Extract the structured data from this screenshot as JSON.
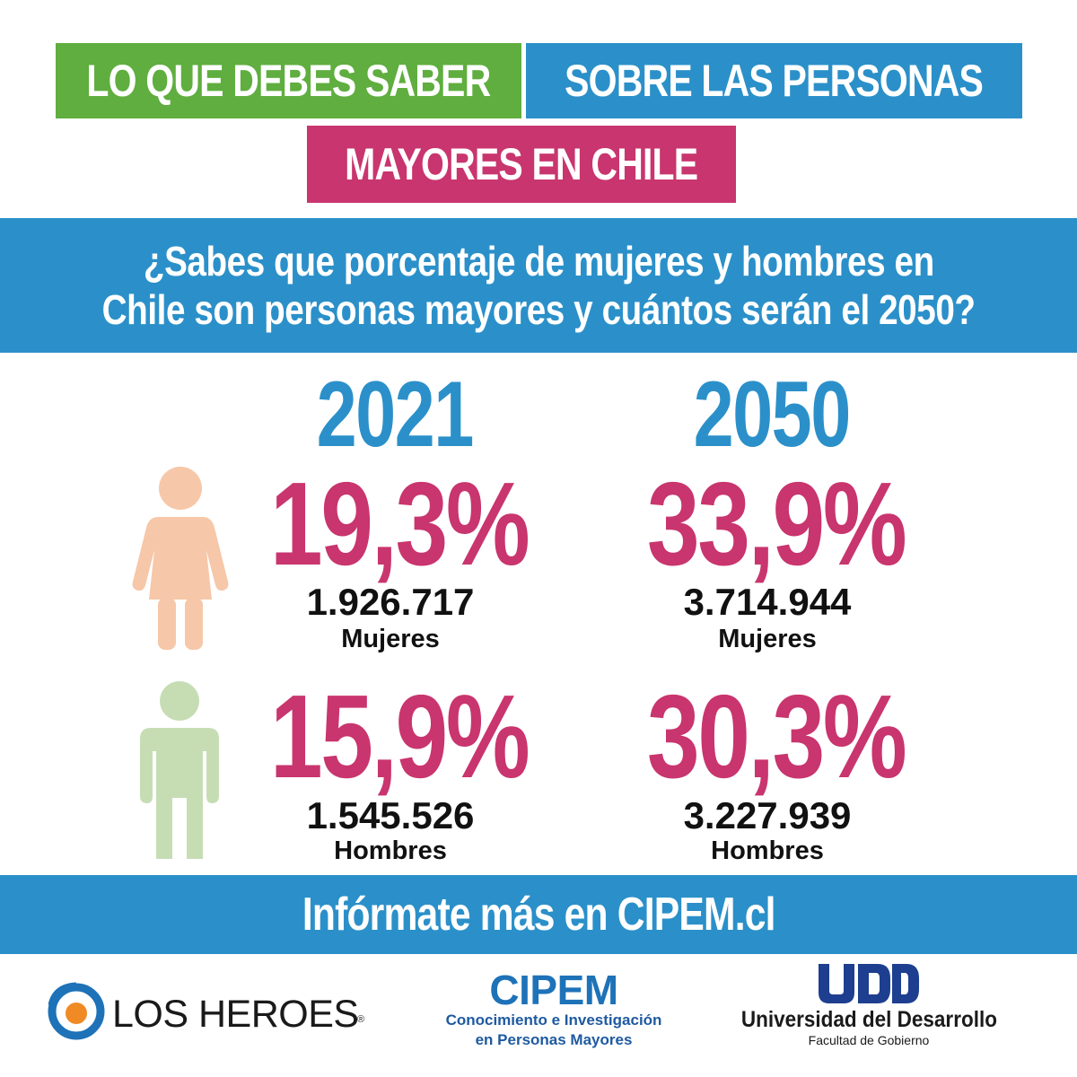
{
  "header": {
    "part1": "LO QUE DEBES SABER",
    "part2": "SOBRE LAS PERSONAS",
    "part3": "MAYORES EN CHILE"
  },
  "question": {
    "line1": "¿Sabes que porcentaje de mujeres y hombres en",
    "line2": "Chile son personas mayores y cuántos serán el 2050?"
  },
  "years": [
    "2021",
    "2050"
  ],
  "women": {
    "label": "Mujeres",
    "y2021": {
      "percent": "19,3%",
      "count": "1.926.717"
    },
    "y2050": {
      "percent": "33,9%",
      "count": "3.714.944"
    }
  },
  "men": {
    "label": "Hombres",
    "y2021": {
      "percent": "15,9%",
      "count": "1.545.526"
    },
    "y2050": {
      "percent": "30,3%",
      "count": "3.227.939"
    }
  },
  "footer": {
    "text": "Infórmate más en CIPEM.cl"
  },
  "logos": {
    "losheroes": {
      "name": "LOS HEROES",
      "mark": "®"
    },
    "cipem": {
      "name": "CIPEM",
      "line1": "Conocimiento e Investigación",
      "line2": "en Personas Mayores"
    },
    "udd": {
      "name": "Universidad del Desarrollo",
      "sub": "Facultad de Gobierno"
    }
  },
  "colors": {
    "green": "#5fae3f",
    "blue": "#2b90c9",
    "pink": "#c9356e",
    "woman_icon": "#f6c7a8",
    "man_icon": "#c6ddb4"
  },
  "icons": [
    "woman-icon",
    "man-icon",
    "los-heroes-logo-icon",
    "udd-logo-icon"
  ]
}
